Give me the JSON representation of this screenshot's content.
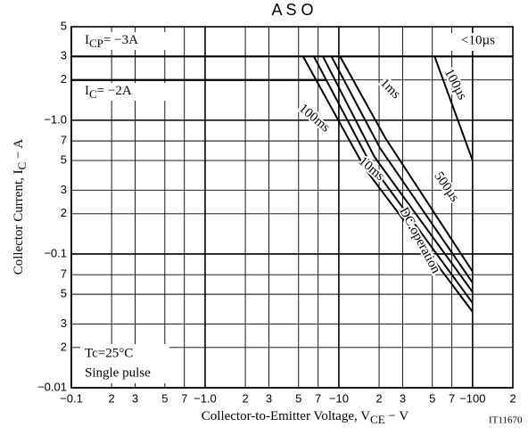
{
  "chart_data": {
    "type": "line",
    "title": "A S O",
    "xlabel": [
      "Collector-to-Emitter Voltage, V",
      "CE",
      " − V"
    ],
    "ylabel": [
      "Collector Current, I",
      "C",
      " − A"
    ],
    "log_x": true,
    "log_y": true,
    "grid": true,
    "xlim": [
      0.1,
      200
    ],
    "ylim": [
      0.01,
      5
    ],
    "xticks": [
      {
        "value": 0.1,
        "label": "−0.1"
      },
      {
        "value": 0.2,
        "label": "2"
      },
      {
        "value": 0.3,
        "label": "3"
      },
      {
        "value": 0.5,
        "label": "5"
      },
      {
        "value": 0.7,
        "label": "7"
      },
      {
        "value": 1,
        "label": "−1.0"
      },
      2,
      3,
      5,
      7,
      {
        "value": 10,
        "label": "−10"
      },
      {
        "value": 20,
        "label": "2"
      },
      {
        "value": 30,
        "label": "3"
      },
      {
        "value": 50,
        "label": "5"
      },
      {
        "value": 70,
        "label": "7"
      },
      {
        "value": 100,
        "label": "−100"
      },
      {
        "value": 200,
        "label": "2"
      }
    ],
    "yticks": [
      5,
      3,
      2,
      {
        "value": 1,
        "label": "−1.0"
      },
      {
        "value": 0.7,
        "label": "7"
      },
      {
        "value": 0.5,
        "label": "5"
      },
      {
        "value": 0.3,
        "label": "3"
      },
      {
        "value": 0.2,
        "label": "2"
      },
      {
        "value": 0.1,
        "label": "−0.1"
      },
      {
        "value": 0.07,
        "label": "7"
      },
      {
        "value": 0.05,
        "label": "5"
      },
      {
        "value": 0.03,
        "label": "3"
      },
      {
        "value": 0.02,
        "label": "2"
      },
      {
        "value": 0.01,
        "label": "−0.01"
      }
    ],
    "limits": [
      {
        "label": [
          "I",
          "CP",
          "= −3A"
        ],
        "y": 3,
        "x": [
          0.1,
          200
        ]
      },
      {
        "label": [
          "I",
          "C",
          "= −2A"
        ],
        "y": 2,
        "x": [
          0.1,
          8
        ]
      }
    ],
    "series": [
      {
        "name": "100µs",
        "color": "#000000",
        "x": [
          52,
          100
        ],
        "y": [
          3,
          0.5
        ]
      },
      {
        "name": "500µs",
        "color": "#000000",
        "x": [
          10.2,
          22.2,
          100
        ],
        "y": [
          3,
          0.74,
          0.074
        ]
      },
      {
        "name": "1ms",
        "color": "#000000",
        "x": [
          8.8,
          20.3,
          100
        ],
        "y": [
          3,
          0.62,
          0.061
        ]
      },
      {
        "name": "10ms",
        "color": "#000000",
        "x": [
          7.6,
          18.5,
          100
        ],
        "y": [
          3,
          0.53,
          0.052
        ]
      },
      {
        "name": "100ms",
        "color": "#000000",
        "x": [
          6.5,
          17.1,
          100
        ],
        "y": [
          3,
          0.48,
          0.043
        ]
      },
      {
        "name": "DC operation",
        "color": "#000000",
        "x": [
          5.4,
          15.8,
          100
        ],
        "y": [
          3,
          0.43,
          0.037
        ]
      }
    ],
    "annotations": [
      "<10µs",
      "Tc=25°C",
      "Single pulse",
      "IT11670"
    ]
  }
}
